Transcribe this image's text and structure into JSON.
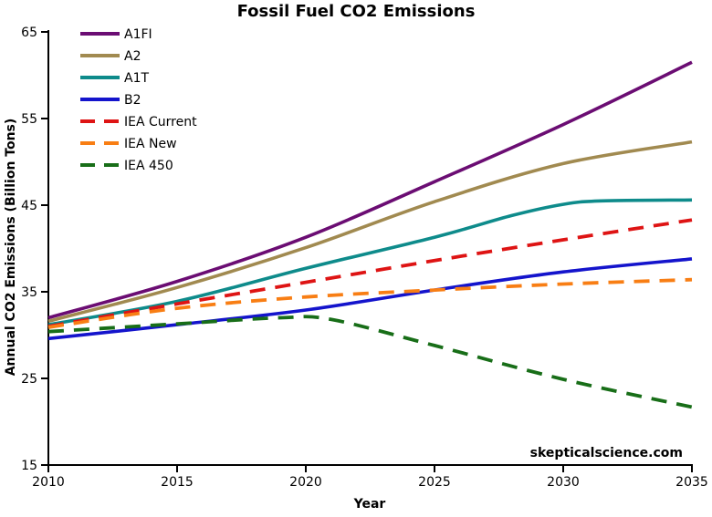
{
  "title": "Fossil Fuel CO2 Emissions",
  "watermark": "skepticalscience.com",
  "chart_data": {
    "type": "line",
    "title": "Fossil Fuel CO2 Emissions",
    "xlabel": "Year",
    "ylabel": "Annual CO2 Emissions (Billion Tons)",
    "xlim": [
      2010,
      2035
    ],
    "ylim": [
      15,
      65
    ],
    "x_ticks": [
      2010,
      2015,
      2020,
      2025,
      2030,
      2035
    ],
    "y_ticks": [
      15,
      25,
      35,
      45,
      55,
      65
    ],
    "grid": false,
    "legend_position": "top-left",
    "axis_color": "#000000",
    "background_color": "#ffffff",
    "series": [
      {
        "name": "A1FI",
        "color": "#6B0D73",
        "style": "solid",
        "points": [
          [
            2010,
            32.0
          ],
          [
            2015,
            36.2
          ],
          [
            2020,
            41.3
          ],
          [
            2025,
            47.7
          ],
          [
            2030,
            54.3
          ],
          [
            2035,
            61.5
          ]
        ]
      },
      {
        "name": "A2",
        "color": "#A18A50",
        "style": "solid",
        "points": [
          [
            2010,
            31.6
          ],
          [
            2015,
            35.5
          ],
          [
            2020,
            40.1
          ],
          [
            2025,
            45.4
          ],
          [
            2030,
            49.8
          ],
          [
            2035,
            52.3
          ]
        ]
      },
      {
        "name": "A1T",
        "color": "#0E8B8B",
        "style": "solid",
        "points": [
          [
            2010,
            31.2
          ],
          [
            2015,
            33.9
          ],
          [
            2020,
            37.7
          ],
          [
            2025,
            41.3
          ],
          [
            2028,
            43.8
          ],
          [
            2030,
            45.1
          ],
          [
            2031.5,
            45.5
          ],
          [
            2035,
            45.6
          ]
        ]
      },
      {
        "name": "B2",
        "color": "#1414CC",
        "style": "solid",
        "points": [
          [
            2010,
            29.6
          ],
          [
            2015,
            31.2
          ],
          [
            2020,
            32.9
          ],
          [
            2025,
            35.2
          ],
          [
            2030,
            37.3
          ],
          [
            2035,
            38.8
          ]
        ]
      },
      {
        "name": "IEA Current",
        "color": "#DE1414",
        "style": "dashed",
        "points": [
          [
            2010,
            31.0
          ],
          [
            2015,
            33.6
          ],
          [
            2020,
            36.1
          ],
          [
            2025,
            38.6
          ],
          [
            2030,
            41.0
          ],
          [
            2035,
            43.3
          ]
        ]
      },
      {
        "name": "IEA New",
        "color": "#F87E14",
        "style": "dashed",
        "points": [
          [
            2010,
            30.9
          ],
          [
            2015,
            33.1
          ],
          [
            2020,
            34.4
          ],
          [
            2025,
            35.2
          ],
          [
            2030,
            35.9
          ],
          [
            2035,
            36.4
          ]
        ]
      },
      {
        "name": "IEA 450",
        "color": "#186E18",
        "style": "dashed",
        "points": [
          [
            2010,
            30.4
          ],
          [
            2015,
            31.3
          ],
          [
            2019,
            32.0
          ],
          [
            2021,
            31.8
          ],
          [
            2025,
            28.8
          ],
          [
            2030,
            24.9
          ],
          [
            2035,
            21.7
          ]
        ]
      }
    ]
  }
}
